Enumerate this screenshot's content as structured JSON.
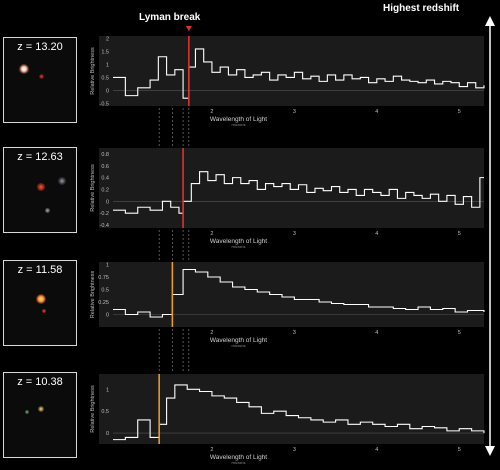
{
  "header": {
    "lyman_break_label": "Lyman break",
    "highest_redshift_label": "Highest redshift"
  },
  "galaxies": [
    {
      "redshift_label": "z = 13.20"
    },
    {
      "redshift_label": "z = 12.63"
    },
    {
      "redshift_label": "z = 11.58"
    },
    {
      "redshift_label": "z = 10.38"
    }
  ],
  "colors": {
    "background": "#000000",
    "panel": "#1b1b1b",
    "spectrum": "#ffffff",
    "break_red": "#e0322a",
    "break_orange": "#e39a2e",
    "guide": "#8c8c8c"
  },
  "icons": {
    "break_marker": "red-triangle-marker-icon",
    "arrow": "vertical-double-arrow-icon"
  },
  "chart_data": [
    {
      "type": "line",
      "step": true,
      "redshift": 13.2,
      "xlabel": "Wavelength of Light",
      "xunit": "microns",
      "ylabel": "Relative Brightness",
      "xlim": [
        0.8,
        5.3
      ],
      "ylim": [
        -0.6,
        2.1
      ],
      "xticks": [
        2,
        3,
        4,
        5
      ],
      "yticks": [
        2,
        1.5,
        1,
        0.5,
        0,
        -0.5
      ],
      "ytick_labels": [
        "2",
        "1.5",
        "1",
        "0.5",
        "0",
        "-0.5"
      ],
      "break_wavelength": 1.72,
      "break_color": "red",
      "series": [
        {
          "x": [
            0.8,
            0.95,
            1.1,
            1.25,
            1.35,
            1.45,
            1.55,
            1.65,
            1.72,
            1.8,
            1.9,
            2.0,
            2.1,
            2.2,
            2.3,
            2.4,
            2.5,
            2.6,
            2.7,
            2.8,
            2.9,
            3.0,
            3.1,
            3.2,
            3.3,
            3.4,
            3.5,
            3.6,
            3.7,
            3.8,
            3.9,
            4.0,
            4.1,
            4.2,
            4.3,
            4.4,
            4.5,
            4.6,
            4.7,
            4.8,
            4.9,
            5.0,
            5.1,
            5.2,
            5.3
          ],
          "y": [
            0.5,
            -0.2,
            0.1,
            0.4,
            1.3,
            0.6,
            0.8,
            -0.3,
            0.9,
            1.6,
            1.1,
            0.7,
            0.9,
            0.6,
            0.8,
            0.5,
            0.6,
            0.7,
            0.4,
            0.6,
            0.5,
            0.7,
            0.45,
            0.55,
            0.35,
            0.6,
            0.4,
            0.6,
            0.45,
            0.5,
            0.3,
            0.45,
            0.35,
            0.55,
            0.4,
            0.35,
            0.3,
            0.4,
            0.25,
            0.35,
            0.3,
            0.15,
            0.3,
            0.1,
            0.2
          ]
        }
      ]
    },
    {
      "type": "line",
      "step": true,
      "redshift": 12.63,
      "xlabel": "Wavelength of Light",
      "xunit": "microns",
      "ylabel": "Relative Brightness",
      "xlim": [
        0.8,
        5.3
      ],
      "ylim": [
        -0.45,
        0.9
      ],
      "xticks": [
        2,
        3,
        4,
        5
      ],
      "yticks": [
        0.8,
        0.6,
        0.4,
        0.2,
        0,
        -0.2,
        -0.4
      ],
      "ytick_labels": [
        "0.8",
        "0.6",
        "0.4",
        "0.2",
        "0",
        "-0.2",
        "-0.4"
      ],
      "break_wavelength": 1.65,
      "break_color": "red",
      "series": [
        {
          "x": [
            0.8,
            0.95,
            1.1,
            1.25,
            1.4,
            1.5,
            1.6,
            1.65,
            1.75,
            1.85,
            1.95,
            2.05,
            2.15,
            2.25,
            2.35,
            2.45,
            2.55,
            2.65,
            2.75,
            2.85,
            2.95,
            3.05,
            3.15,
            3.25,
            3.35,
            3.45,
            3.55,
            3.65,
            3.75,
            3.85,
            3.95,
            4.05,
            4.15,
            4.25,
            4.35,
            4.45,
            4.55,
            4.65,
            4.75,
            4.85,
            4.95,
            5.05,
            5.15,
            5.25
          ],
          "y": [
            -0.15,
            -0.2,
            -0.1,
            -0.15,
            0.0,
            -0.1,
            -0.2,
            0.0,
            0.3,
            0.5,
            0.35,
            0.45,
            0.3,
            0.4,
            0.3,
            0.35,
            0.2,
            0.3,
            0.25,
            0.3,
            0.2,
            0.28,
            0.15,
            0.22,
            0.18,
            0.25,
            0.15,
            0.2,
            0.1,
            0.2,
            0.15,
            0.1,
            0.2,
            0.05,
            0.15,
            0.1,
            0.05,
            0.12,
            0.0,
            0.1,
            -0.05,
            0.08,
            -0.1,
            0.4
          ]
        }
      ]
    },
    {
      "type": "line",
      "step": true,
      "redshift": 11.58,
      "xlabel": "Wavelength of Light",
      "xunit": "microns",
      "ylabel": "Relative Brightness",
      "xlim": [
        0.8,
        5.3
      ],
      "ylim": [
        -0.25,
        1.05
      ],
      "xticks": [
        2,
        3,
        4,
        5
      ],
      "yticks": [
        1,
        0.75,
        0.5,
        0.25,
        0
      ],
      "ytick_labels": [
        "1",
        "0.75",
        "0.5",
        "0.25",
        "0"
      ],
      "break_wavelength": 1.52,
      "break_color": "orange",
      "series": [
        {
          "x": [
            0.8,
            0.95,
            1.1,
            1.25,
            1.4,
            1.52,
            1.65,
            1.8,
            1.95,
            2.1,
            2.25,
            2.4,
            2.55,
            2.7,
            2.85,
            3.0,
            3.15,
            3.3,
            3.45,
            3.6,
            3.75,
            3.9,
            4.05,
            4.2,
            4.35,
            4.5,
            4.65,
            4.8,
            4.95,
            5.1,
            5.3
          ],
          "y": [
            0.1,
            0.0,
            0.05,
            -0.05,
            0.0,
            0.4,
            0.9,
            0.85,
            0.75,
            0.65,
            0.55,
            0.5,
            0.45,
            0.4,
            0.35,
            0.3,
            0.3,
            0.25,
            0.22,
            0.2,
            0.2,
            0.15,
            0.15,
            0.12,
            0.1,
            0.15,
            0.1,
            0.12,
            0.05,
            0.08,
            0.05
          ]
        }
      ]
    },
    {
      "type": "line",
      "step": true,
      "redshift": 10.38,
      "xlabel": "Wavelength of Light",
      "xunit": "microns",
      "ylabel": "Relative Brightness",
      "xlim": [
        0.8,
        5.3
      ],
      "ylim": [
        -0.25,
        1.35
      ],
      "xticks": [
        2,
        3,
        4,
        5
      ],
      "yticks": [
        1,
        0.5,
        0
      ],
      "ytick_labels": [
        "1",
        "0.5",
        "0"
      ],
      "break_wavelength": 1.36,
      "break_color": "orange",
      "series": [
        {
          "x": [
            0.8,
            0.95,
            1.1,
            1.25,
            1.36,
            1.45,
            1.55,
            1.7,
            1.85,
            2.0,
            2.15,
            2.3,
            2.45,
            2.6,
            2.75,
            2.9,
            3.05,
            3.2,
            3.35,
            3.5,
            3.65,
            3.8,
            3.95,
            4.1,
            4.25,
            4.4,
            4.55,
            4.7,
            4.85,
            5.0,
            5.15,
            5.3
          ],
          "y": [
            -0.15,
            -0.1,
            0.3,
            -0.1,
            0.2,
            0.8,
            1.1,
            1.0,
            0.95,
            0.85,
            0.8,
            0.7,
            0.6,
            0.45,
            0.5,
            0.4,
            0.35,
            0.3,
            0.25,
            0.3,
            0.2,
            0.25,
            0.2,
            0.15,
            0.2,
            0.1,
            0.15,
            0.12,
            0.05,
            0.1,
            0.05,
            0.0
          ]
        }
      ]
    }
  ]
}
